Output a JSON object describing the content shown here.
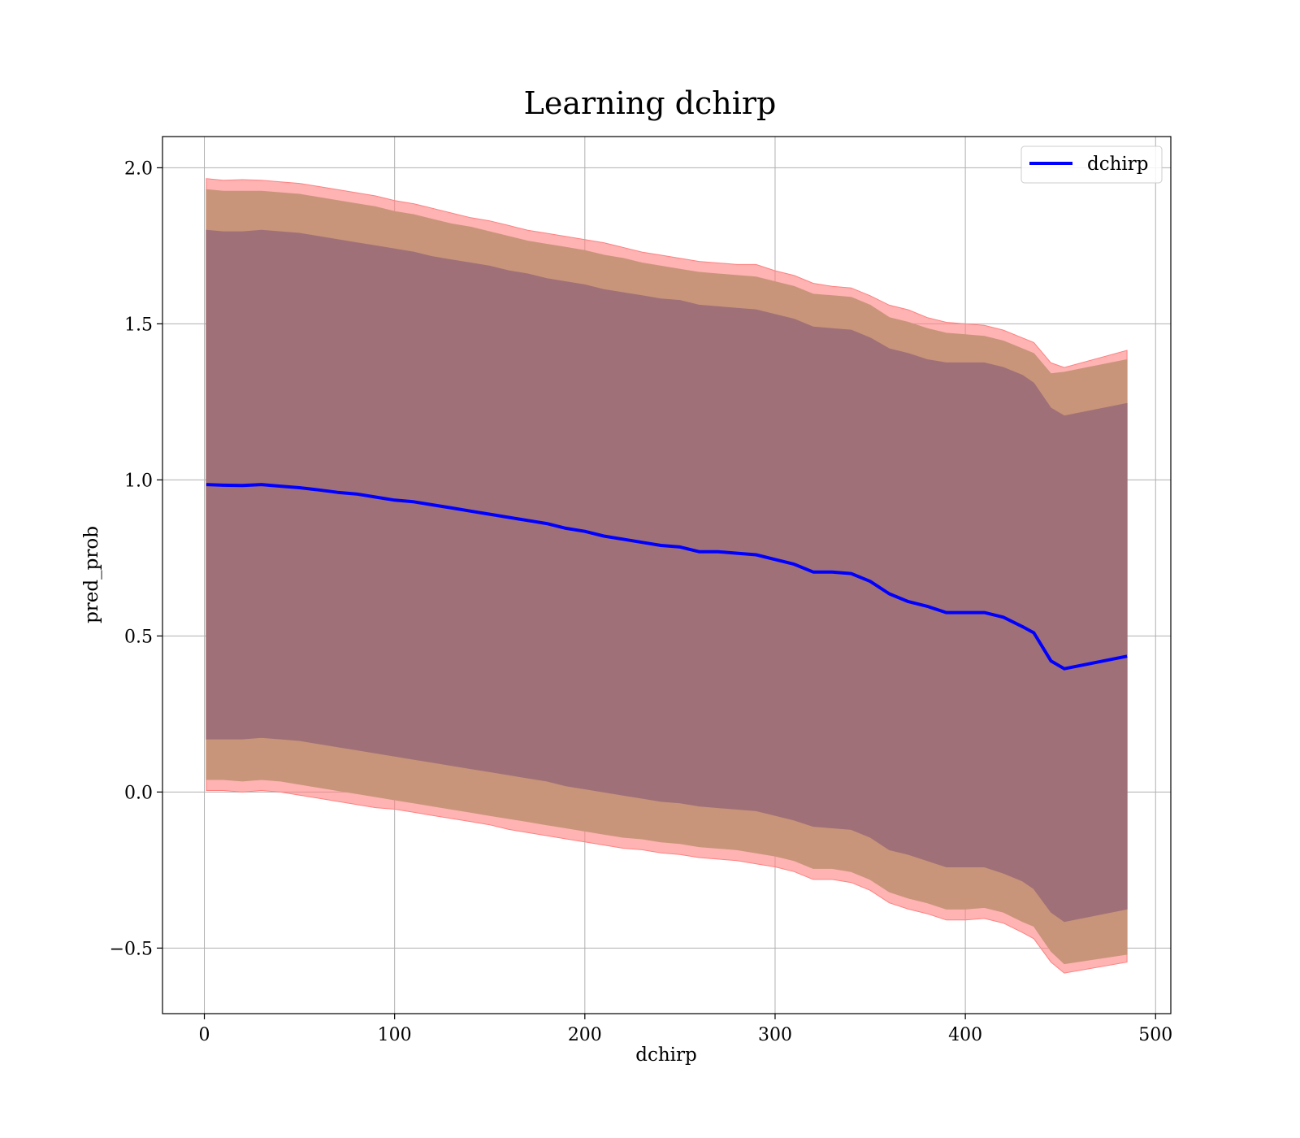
{
  "chart_data": {
    "type": "line",
    "title": "Learning dchirp",
    "xlabel": "dchirp",
    "ylabel": "pred_prob",
    "xlim": [
      -22,
      508
    ],
    "ylim": [
      -0.71,
      2.1
    ],
    "xticks": [
      0,
      100,
      200,
      300,
      400,
      500
    ],
    "yticks": [
      -0.5,
      0.0,
      0.5,
      1.0,
      1.5,
      2.0
    ],
    "ytick_labels": [
      "−0.5",
      "0.0",
      "0.5",
      "1.0",
      "1.5",
      "2.0"
    ],
    "grid": true,
    "legend": {
      "position": "top-right",
      "entries": [
        "dchirp"
      ]
    },
    "colors": {
      "line": "#0000ff",
      "band_outer": "#ff8080",
      "band_middle": "#c8957a",
      "band_inner": "#a07078"
    },
    "x": [
      1,
      10,
      20,
      30,
      40,
      50,
      60,
      70,
      80,
      90,
      100,
      110,
      120,
      130,
      140,
      150,
      160,
      170,
      180,
      190,
      200,
      210,
      220,
      230,
      240,
      250,
      260,
      270,
      280,
      290,
      300,
      310,
      320,
      330,
      340,
      350,
      360,
      370,
      380,
      390,
      400,
      410,
      420,
      430,
      436,
      445,
      452,
      485
    ],
    "series": [
      {
        "name": "dchirp",
        "values": [
          0.985,
          0.983,
          0.982,
          0.985,
          0.98,
          0.975,
          0.968,
          0.96,
          0.955,
          0.945,
          0.935,
          0.93,
          0.92,
          0.91,
          0.9,
          0.89,
          0.88,
          0.87,
          0.86,
          0.845,
          0.835,
          0.82,
          0.81,
          0.8,
          0.79,
          0.785,
          0.77,
          0.77,
          0.765,
          0.76,
          0.745,
          0.73,
          0.705,
          0.705,
          0.7,
          0.675,
          0.635,
          0.61,
          0.595,
          0.575,
          0.575,
          0.575,
          0.56,
          0.53,
          0.51,
          0.42,
          0.395,
          0.435
        ]
      }
    ],
    "bands": [
      {
        "name": "outer",
        "upper": [
          1.965,
          1.96,
          1.962,
          1.96,
          1.955,
          1.95,
          1.94,
          1.93,
          1.92,
          1.91,
          1.895,
          1.885,
          1.87,
          1.855,
          1.84,
          1.83,
          1.815,
          1.8,
          1.79,
          1.78,
          1.77,
          1.76,
          1.745,
          1.73,
          1.72,
          1.71,
          1.7,
          1.695,
          1.69,
          1.69,
          1.67,
          1.655,
          1.63,
          1.62,
          1.615,
          1.59,
          1.56,
          1.545,
          1.52,
          1.505,
          1.5,
          1.495,
          1.48,
          1.455,
          1.44,
          1.375,
          1.36,
          1.415
        ],
        "lower": [
          0.005,
          0.005,
          0.0,
          0.005,
          0.0,
          -0.01,
          -0.02,
          -0.03,
          -0.04,
          -0.05,
          -0.055,
          -0.065,
          -0.075,
          -0.085,
          -0.095,
          -0.105,
          -0.12,
          -0.13,
          -0.14,
          -0.15,
          -0.16,
          -0.17,
          -0.18,
          -0.185,
          -0.195,
          -0.2,
          -0.21,
          -0.215,
          -0.22,
          -0.23,
          -0.24,
          -0.255,
          -0.28,
          -0.28,
          -0.29,
          -0.315,
          -0.355,
          -0.375,
          -0.39,
          -0.41,
          -0.41,
          -0.405,
          -0.42,
          -0.45,
          -0.47,
          -0.545,
          -0.58,
          -0.545
        ]
      },
      {
        "name": "middle",
        "upper": [
          1.93,
          1.925,
          1.925,
          1.925,
          1.92,
          1.915,
          1.905,
          1.895,
          1.885,
          1.875,
          1.86,
          1.85,
          1.835,
          1.82,
          1.81,
          1.795,
          1.78,
          1.765,
          1.755,
          1.745,
          1.735,
          1.72,
          1.71,
          1.695,
          1.685,
          1.675,
          1.665,
          1.66,
          1.655,
          1.65,
          1.635,
          1.62,
          1.595,
          1.59,
          1.585,
          1.56,
          1.52,
          1.505,
          1.485,
          1.47,
          1.465,
          1.46,
          1.445,
          1.42,
          1.405,
          1.34,
          1.345,
          1.385
        ],
        "lower": [
          0.04,
          0.04,
          0.035,
          0.04,
          0.035,
          0.025,
          0.015,
          0.005,
          -0.005,
          -0.015,
          -0.025,
          -0.035,
          -0.045,
          -0.055,
          -0.065,
          -0.075,
          -0.085,
          -0.095,
          -0.105,
          -0.115,
          -0.125,
          -0.135,
          -0.145,
          -0.15,
          -0.16,
          -0.165,
          -0.175,
          -0.18,
          -0.185,
          -0.195,
          -0.205,
          -0.22,
          -0.245,
          -0.245,
          -0.255,
          -0.28,
          -0.32,
          -0.34,
          -0.355,
          -0.375,
          -0.375,
          -0.37,
          -0.385,
          -0.415,
          -0.43,
          -0.51,
          -0.55,
          -0.52
        ]
      },
      {
        "name": "inner",
        "upper": [
          1.8,
          1.795,
          1.795,
          1.8,
          1.795,
          1.79,
          1.78,
          1.77,
          1.76,
          1.75,
          1.74,
          1.73,
          1.715,
          1.705,
          1.695,
          1.685,
          1.67,
          1.66,
          1.645,
          1.635,
          1.625,
          1.61,
          1.6,
          1.59,
          1.58,
          1.575,
          1.56,
          1.555,
          1.55,
          1.545,
          1.53,
          1.515,
          1.49,
          1.485,
          1.48,
          1.455,
          1.42,
          1.405,
          1.385,
          1.375,
          1.375,
          1.375,
          1.36,
          1.335,
          1.31,
          1.23,
          1.205,
          1.245
        ],
        "lower": [
          0.17,
          0.17,
          0.17,
          0.175,
          0.17,
          0.165,
          0.155,
          0.145,
          0.135,
          0.125,
          0.115,
          0.105,
          0.095,
          0.085,
          0.075,
          0.065,
          0.055,
          0.045,
          0.035,
          0.02,
          0.01,
          0.0,
          -0.01,
          -0.02,
          -0.03,
          -0.035,
          -0.045,
          -0.05,
          -0.055,
          -0.06,
          -0.075,
          -0.09,
          -0.11,
          -0.115,
          -0.12,
          -0.145,
          -0.185,
          -0.2,
          -0.22,
          -0.24,
          -0.24,
          -0.24,
          -0.26,
          -0.285,
          -0.31,
          -0.385,
          -0.415,
          -0.375
        ]
      }
    ]
  }
}
